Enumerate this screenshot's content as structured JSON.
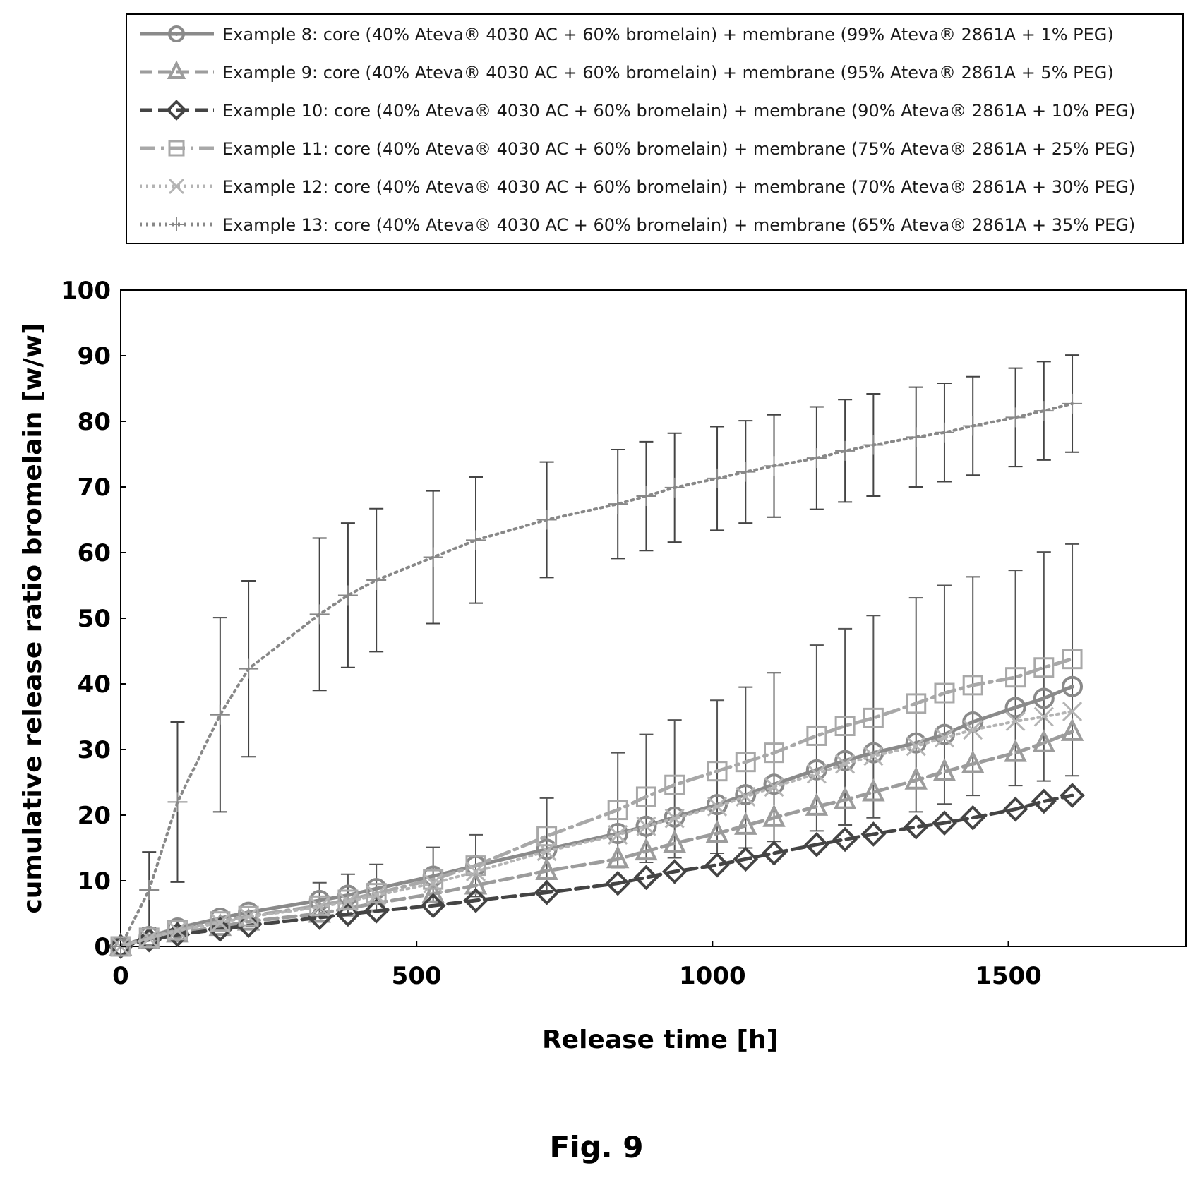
{
  "figure_caption": "Fig. 9",
  "chart_data": {
    "type": "line",
    "xlabel": "Release time [h]",
    "ylabel": "cumulative release ratio bromelain [w/w]",
    "xlim": [
      0,
      1800
    ],
    "ylim": [
      0,
      100
    ],
    "x_ticks": [
      0,
      500,
      1000,
      1500
    ],
    "y_ticks": [
      0,
      10,
      20,
      30,
      40,
      50,
      60,
      70,
      80,
      90,
      100
    ],
    "grid": false,
    "legend_position": "top",
    "series": [
      {
        "name": "Example 8: core (40% Ateva® 4030 AC + 60% bromelain) + membrane (99% Ateva® 2861A + 1% PEG)",
        "marker": "circle",
        "line_style": "solid",
        "color": "#8a8a8a",
        "x": [
          0,
          48,
          96,
          168,
          216,
          336,
          384,
          432,
          528,
          600,
          720,
          840,
          888,
          936,
          1008,
          1056,
          1104,
          1176,
          1224,
          1272,
          1344,
          1392,
          1440,
          1512,
          1560,
          1608
        ],
        "y": [
          0,
          1.5,
          2.8,
          4.3,
          5.2,
          7.0,
          7.8,
          8.8,
          10.7,
          12.3,
          14.8,
          17.2,
          18.3,
          19.7,
          21.6,
          23.1,
          24.7,
          26.9,
          28.3,
          29.5,
          31.0,
          32.3,
          34.2,
          36.4,
          37.8,
          39.6
        ]
      },
      {
        "name": "Example 9: core (40% Ateva® 4030 AC + 60% bromelain) + membrane (95% Ateva® 2861A + 5% PEG)",
        "marker": "triangle",
        "line_style": "dashed",
        "color": "#9c9c9c",
        "x": [
          0,
          48,
          96,
          168,
          216,
          336,
          384,
          432,
          528,
          600,
          720,
          840,
          888,
          936,
          1008,
          1056,
          1104,
          1176,
          1224,
          1272,
          1344,
          1392,
          1440,
          1512,
          1560,
          1608
        ],
        "y": [
          0,
          1.0,
          2.0,
          3.0,
          3.8,
          5.0,
          5.8,
          6.6,
          8.0,
          9.3,
          11.5,
          13.3,
          14.5,
          15.7,
          17.2,
          18.4,
          19.6,
          21.3,
          22.3,
          23.5,
          25.3,
          26.6,
          27.8,
          29.5,
          31.0,
          32.7
        ]
      },
      {
        "name": "Example 10: core (40% Ateva® 4030 AC + 60% bromelain) + membrane (90% Ateva® 2861A + 10% PEG)",
        "marker": "diamond",
        "line_style": "dashed",
        "color": "#444444",
        "x": [
          0,
          48,
          96,
          168,
          216,
          336,
          384,
          432,
          528,
          600,
          720,
          840,
          888,
          936,
          1008,
          1056,
          1104,
          1176,
          1224,
          1272,
          1344,
          1392,
          1440,
          1512,
          1560,
          1608
        ],
        "y": [
          0,
          1.0,
          1.8,
          2.6,
          3.2,
          4.4,
          4.9,
          5.4,
          6.2,
          7.0,
          8.2,
          9.6,
          10.5,
          11.4,
          12.4,
          13.3,
          14.2,
          15.5,
          16.3,
          17.1,
          18.2,
          18.8,
          19.6,
          20.9,
          22.1,
          23.0
        ]
      },
      {
        "name": "Example 11: core (40% Ateva® 4030 AC + 60% bromelain) + membrane (75% Ateva® 2861A + 25% PEG)",
        "marker": "square",
        "line_style": "dashdot",
        "color": "#a8a8a8",
        "x": [
          0,
          48,
          96,
          168,
          216,
          336,
          384,
          432,
          528,
          600,
          720,
          840,
          888,
          936,
          1008,
          1056,
          1104,
          1176,
          1224,
          1272,
          1344,
          1392,
          1440,
          1512,
          1560,
          1608
        ],
        "y": [
          0,
          1.3,
          2.5,
          3.8,
          4.6,
          6.2,
          7.1,
          8.1,
          10.2,
          12.3,
          16.8,
          20.8,
          22.8,
          24.6,
          26.7,
          28.1,
          29.5,
          32.1,
          33.6,
          34.8,
          37.0,
          38.6,
          39.8,
          41.0,
          42.5,
          43.8
        ]
      },
      {
        "name": "Example 12: core (40% Ateva® 4030 AC + 60% bromelain) + membrane (70% Ateva® 2861A + 30% PEG)",
        "marker": "x",
        "line_style": "dotted",
        "color": "#b4b4b4",
        "x": [
          0,
          48,
          96,
          168,
          216,
          336,
          384,
          432,
          528,
          600,
          720,
          840,
          888,
          936,
          1008,
          1056,
          1104,
          1176,
          1224,
          1272,
          1344,
          1392,
          1440,
          1512,
          1560,
          1608
        ],
        "y": [
          0,
          1.2,
          2.4,
          3.6,
          4.5,
          6.0,
          6.8,
          7.8,
          9.6,
          11.4,
          14.5,
          17.0,
          18.3,
          19.5,
          21.3,
          22.8,
          24.3,
          26.3,
          27.8,
          29.0,
          30.5,
          31.8,
          33.0,
          34.3,
          35.0,
          35.8
        ]
      },
      {
        "name": "Example 13: core (40% Ateva® 4030 AC + 60% bromelain) + membrane (65% Ateva® 2861A + 35% PEG)",
        "marker": "plus",
        "line_style": "dotted",
        "color": "#888888",
        "x": [
          0,
          48,
          96,
          168,
          216,
          336,
          384,
          432,
          528,
          600,
          720,
          840,
          888,
          936,
          1008,
          1056,
          1104,
          1176,
          1224,
          1272,
          1344,
          1392,
          1440,
          1512,
          1560,
          1608
        ],
        "y": [
          0,
          8.6,
          22.0,
          35.3,
          42.3,
          50.6,
          53.5,
          55.8,
          59.3,
          61.9,
          65.0,
          67.4,
          68.6,
          69.9,
          71.3,
          72.3,
          73.2,
          74.4,
          75.5,
          76.4,
          77.6,
          78.3,
          79.3,
          80.6,
          81.6,
          82.7
        ],
        "error": [
          0,
          5.8,
          12.2,
          14.8,
          13.4,
          11.6,
          11.0,
          10.9,
          10.1,
          9.6,
          8.8,
          8.3,
          8.3,
          8.3,
          7.9,
          7.8,
          7.8,
          7.8,
          7.8,
          7.8,
          7.6,
          7.5,
          7.5,
          7.5,
          7.5,
          7.4
        ]
      }
    ],
    "low_error_bars": [
      {
        "x": 336,
        "low": 4.5,
        "high": 9.7
      },
      {
        "x": 384,
        "low": 5.0,
        "high": 11.0
      },
      {
        "x": 432,
        "low": 5.5,
        "high": 12.5
      },
      {
        "x": 528,
        "low": 6.8,
        "high": 15.1
      },
      {
        "x": 600,
        "low": 7.6,
        "high": 17.0
      },
      {
        "x": 720,
        "low": 8.5,
        "high": 22.6
      },
      {
        "x": 840,
        "low": 12.0,
        "high": 29.5
      },
      {
        "x": 888,
        "low": 12.8,
        "high": 32.3
      },
      {
        "x": 936,
        "low": 13.5,
        "high": 34.5
      },
      {
        "x": 1008,
        "low": 14.2,
        "high": 37.5
      },
      {
        "x": 1056,
        "low": 15.0,
        "high": 39.5
      },
      {
        "x": 1104,
        "low": 16.0,
        "high": 41.7
      },
      {
        "x": 1176,
        "low": 17.6,
        "high": 45.9
      },
      {
        "x": 1224,
        "low": 18.5,
        "high": 48.4
      },
      {
        "x": 1272,
        "low": 19.6,
        "high": 50.4
      },
      {
        "x": 1344,
        "low": 20.5,
        "high": 53.1
      },
      {
        "x": 1392,
        "low": 21.7,
        "high": 55.0
      },
      {
        "x": 1440,
        "low": 23.0,
        "high": 56.3
      },
      {
        "x": 1512,
        "low": 24.5,
        "high": 57.3
      },
      {
        "x": 1560,
        "low": 25.2,
        "high": 60.1
      },
      {
        "x": 1608,
        "low": 26.0,
        "high": 61.3
      }
    ]
  }
}
